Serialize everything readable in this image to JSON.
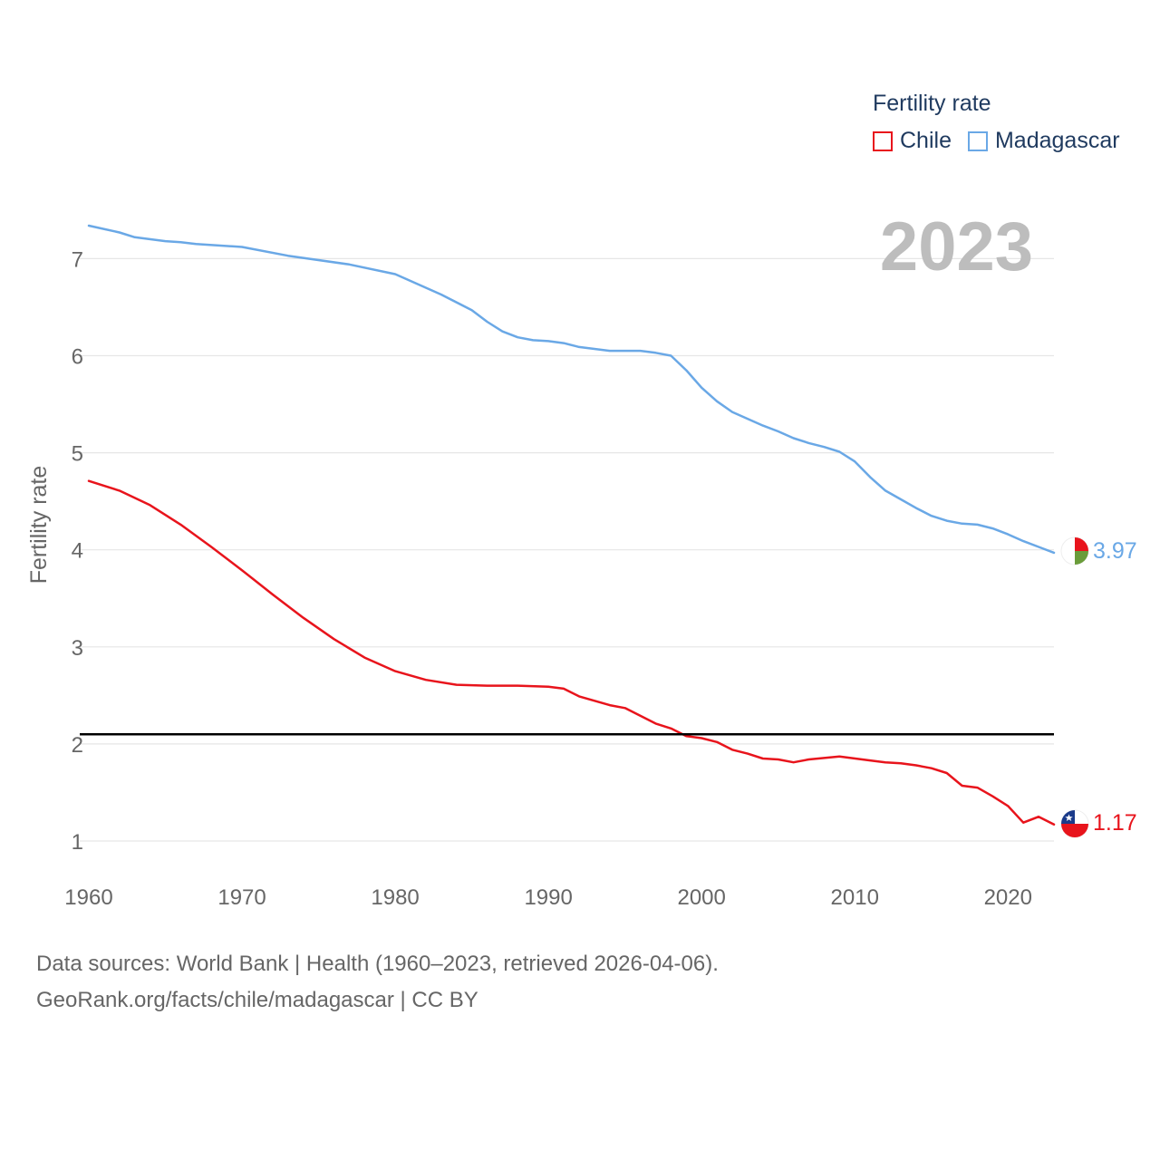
{
  "legend": {
    "title": "Fertility rate",
    "items": [
      {
        "label": "Chile",
        "color": "#e8141c"
      },
      {
        "label": "Madagascar",
        "color": "#6aa8e6"
      }
    ]
  },
  "year_label": "2023",
  "footer": {
    "line1": "Data sources: World Bank | Health (1960–2023, retrieved 2026-04-06).",
    "line2": "GeoRank.org/facts/chile/madagascar | CC BY"
  },
  "chart_data": {
    "type": "line",
    "title": "Fertility rate",
    "ylabel": "Fertility rate",
    "xlabel": "",
    "xlim": [
      1960,
      2023
    ],
    "ylim": [
      0.5,
      7.6
    ],
    "xticks": [
      1960,
      1970,
      1980,
      1990,
      2000,
      2010,
      2020
    ],
    "yticks": [
      1,
      2,
      3,
      4,
      5,
      6,
      7
    ],
    "grid": true,
    "reference_line": {
      "y": 2.1,
      "color": "#000000"
    },
    "end_labels": [
      {
        "series": "Madagascar",
        "text": "3.97",
        "color": "#6aa8e6"
      },
      {
        "series": "Chile",
        "text": "1.17",
        "color": "#e8141c"
      }
    ],
    "series": [
      {
        "name": "Chile",
        "color": "#e8141c",
        "x": [
          1960,
          1962,
          1964,
          1966,
          1968,
          1970,
          1972,
          1974,
          1976,
          1978,
          1980,
          1982,
          1984,
          1986,
          1988,
          1990,
          1991,
          1992,
          1994,
          1995,
          1997,
          1998,
          1999,
          2000,
          2001,
          2002,
          2003,
          2004,
          2005,
          2006,
          2007,
          2009,
          2011,
          2012,
          2013,
          2014,
          2015,
          2016,
          2017,
          2018,
          2019,
          2020,
          2021,
          2022,
          2023
        ],
        "values": [
          4.71,
          4.61,
          4.46,
          4.26,
          4.03,
          3.79,
          3.54,
          3.3,
          3.08,
          2.89,
          2.75,
          2.66,
          2.61,
          2.6,
          2.6,
          2.59,
          2.57,
          2.49,
          2.4,
          2.37,
          2.21,
          2.16,
          2.08,
          2.06,
          2.02,
          1.94,
          1.9,
          1.85,
          1.84,
          1.81,
          1.84,
          1.87,
          1.83,
          1.81,
          1.8,
          1.78,
          1.75,
          1.7,
          1.57,
          1.55,
          1.46,
          1.36,
          1.19,
          1.25,
          1.17
        ]
      },
      {
        "name": "Madagascar",
        "color": "#6aa8e6",
        "x": [
          1960,
          1962,
          1963,
          1965,
          1966,
          1967,
          1970,
          1973,
          1977,
          1980,
          1983,
          1985,
          1986,
          1987,
          1988,
          1989,
          1990,
          1991,
          1992,
          1994,
          1996,
          1997,
          1998,
          1999,
          2000,
          2001,
          2002,
          2003,
          2004,
          2005,
          2006,
          2007,
          2008,
          2009,
          2010,
          2011,
          2012,
          2013,
          2014,
          2015,
          2016,
          2017,
          2018,
          2019,
          2020,
          2021,
          2022,
          2023
        ],
        "values": [
          7.34,
          7.27,
          7.22,
          7.18,
          7.17,
          7.15,
          7.12,
          7.03,
          6.94,
          6.84,
          6.63,
          6.47,
          6.35,
          6.25,
          6.19,
          6.16,
          6.15,
          6.13,
          6.09,
          6.05,
          6.05,
          6.03,
          6.0,
          5.85,
          5.67,
          5.53,
          5.42,
          5.35,
          5.28,
          5.22,
          5.15,
          5.1,
          5.06,
          5.01,
          4.91,
          4.75,
          4.61,
          4.52,
          4.43,
          4.35,
          4.3,
          4.27,
          4.26,
          4.22,
          4.16,
          4.09,
          4.03,
          3.97
        ]
      }
    ]
  }
}
